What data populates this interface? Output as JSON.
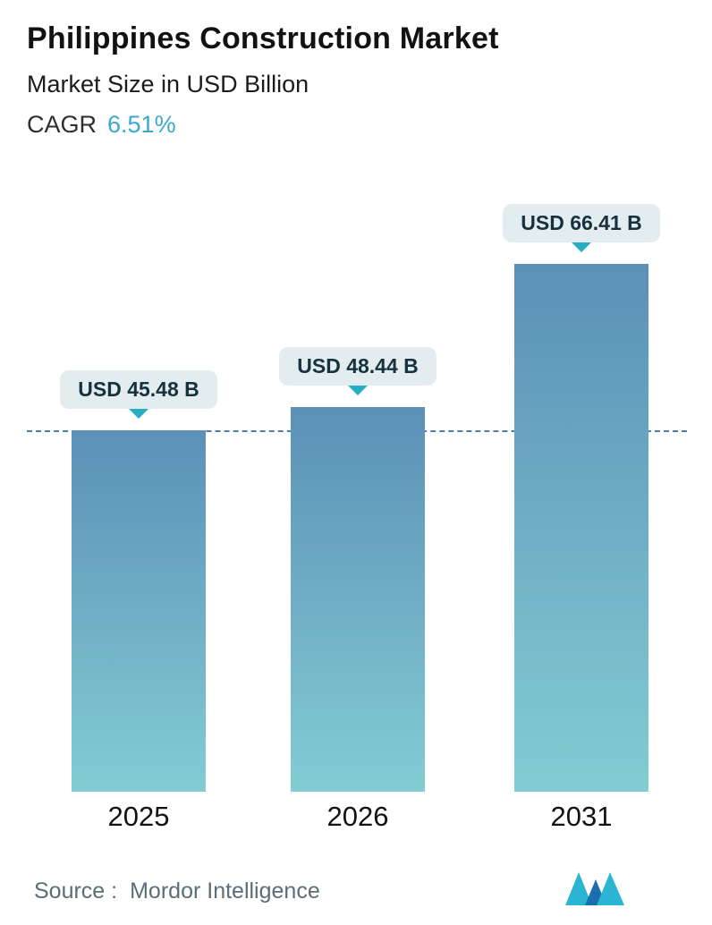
{
  "header": {
    "title": "Philippines Construction Market",
    "subtitle": "Market Size in USD Billion",
    "cagr_label": "CAGR",
    "cagr_value": "6.51%"
  },
  "chart_data": {
    "type": "bar",
    "title": "Philippines Construction Market",
    "ylabel": "Market Size in USD Billion",
    "categories": [
      "2025",
      "2026",
      "2031"
    ],
    "values": [
      45.48,
      48.44,
      66.41
    ],
    "value_labels": [
      "USD 45.48 B",
      "USD 48.44 B",
      "USD 66.41 B"
    ],
    "ylim": [
      0,
      66.41
    ],
    "dash_line_value": 45.48,
    "grid": false,
    "legend": "none"
  },
  "footer": {
    "source_label": "Source :",
    "source_value": "Mordor Intelligence"
  },
  "icons": {
    "logo": "mordor-intelligence-logo"
  },
  "colors": {
    "bar_top": "#5b90b7",
    "bar_bottom": "#83ccd3",
    "dash_line": "#4d7fab",
    "pill_bg": "#e3edf0",
    "pill_text": "#16323f",
    "pointer": "#28aec4",
    "cagr_value": "#38a9cf",
    "logo_teal": "#2ab5d2",
    "logo_blue": "#1b6fae"
  }
}
